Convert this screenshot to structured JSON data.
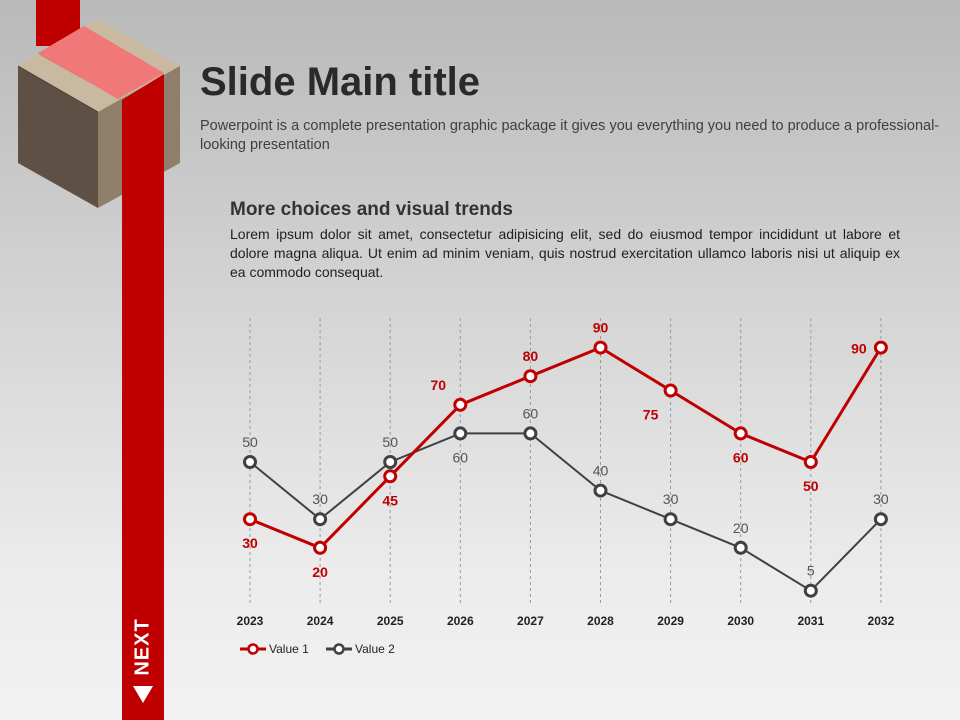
{
  "slide": {
    "title": "Slide Main title",
    "subtitle": "Powerpoint is a complete presentation graphic package it gives you everything you need to produce a professional-looking presentation"
  },
  "section": {
    "title": "More choices and visual trends",
    "body": "Lorem ipsum dolor sit amet, consectetur adipisicing elit, sed do eiusmod tempor incididunt ut labore et dolore magna aliqua. Ut enim ad minim veniam, quis nostrud exercitation ullamco laboris nisi ut aliquip ex ea commodo consequat."
  },
  "nav": {
    "next_label": "NEXT"
  },
  "colors": {
    "accent": "#c00000",
    "series1": "#c00000",
    "series2": "#404040"
  },
  "chart_data": {
    "type": "line",
    "title": "",
    "xlabel": "",
    "ylabel": "",
    "x": [
      "2023",
      "2024",
      "2025",
      "2026",
      "2027",
      "2028",
      "2029",
      "2030",
      "2031",
      "2032"
    ],
    "ylim": [
      0,
      100
    ],
    "grid": "vertical dashed",
    "legend": "bottom-left",
    "series": [
      {
        "name": "Value 1",
        "color": "#c00000",
        "values": [
          30,
          20,
          45,
          70,
          80,
          90,
          75,
          60,
          50,
          90
        ]
      },
      {
        "name": "Value 2",
        "color": "#404040",
        "values": [
          50,
          30,
          50,
          60,
          60,
          40,
          30,
          20,
          5,
          30
        ]
      }
    ]
  }
}
